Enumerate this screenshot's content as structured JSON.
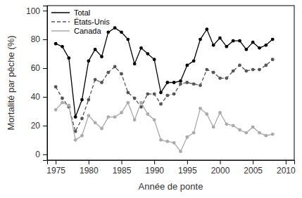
{
  "chart_data": {
    "type": "line",
    "x_label": "Année de ponte",
    "y_label": "Mortalité par pêche (%)",
    "x": [
      1975,
      1976,
      1977,
      1978,
      1979,
      1980,
      1981,
      1982,
      1983,
      1984,
      1985,
      1986,
      1987,
      1988,
      1989,
      1990,
      1991,
      1992,
      1993,
      1994,
      1995,
      1996,
      1997,
      1998,
      1999,
      2000,
      2001,
      2002,
      2003,
      2004,
      2005,
      2006,
      2007,
      2008
    ],
    "series": [
      {
        "name": "Total",
        "color": "#000000",
        "line_style": "solid",
        "marker": "circle",
        "values": [
          77,
          75,
          67,
          26,
          38,
          65,
          73,
          68,
          85,
          88,
          85,
          80,
          63,
          74,
          70,
          66,
          43,
          50,
          50,
          51,
          62,
          65,
          80,
          87,
          76,
          81,
          75,
          79,
          79,
          73,
          78,
          74,
          76,
          80
        ]
      },
      {
        "name": "États-Unis",
        "color": "#555555",
        "line_style": "dashed",
        "marker": "circle",
        "values": [
          47,
          39,
          33,
          16,
          25,
          38,
          52,
          50,
          57,
          61,
          56,
          43,
          39,
          33,
          42,
          42,
          35,
          41,
          42,
          49,
          50,
          49,
          48,
          59,
          57,
          53,
          53,
          58,
          62,
          58,
          59,
          59,
          62,
          66
        ]
      },
      {
        "name": "Canada",
        "color": "#aaaaaa",
        "line_style": "solid",
        "marker": "circle",
        "values": [
          31,
          36,
          34,
          10,
          13,
          27,
          22,
          18,
          26,
          26,
          29,
          36,
          24,
          36,
          28,
          24,
          10,
          9,
          8,
          2,
          12,
          15,
          32,
          28,
          19,
          29,
          21,
          20,
          17,
          15,
          19,
          15,
          13,
          14
        ]
      }
    ],
    "xlim": [
      1973.7,
      2011.3
    ],
    "xticks": [
      1975,
      1980,
      1985,
      1990,
      1995,
      2000,
      2005,
      2010
    ],
    "ylim": [
      -4,
      103.5
    ],
    "yticks": [
      0,
      20,
      40,
      60,
      80,
      100
    ],
    "grid": false,
    "legend": "top-left"
  }
}
